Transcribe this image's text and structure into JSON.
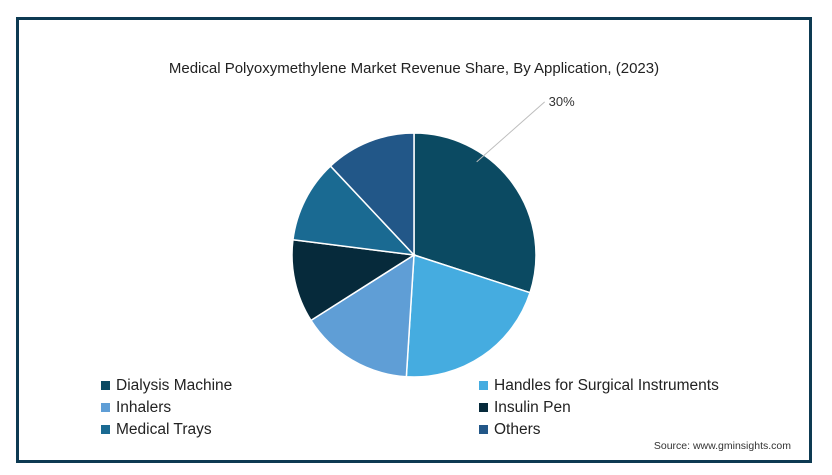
{
  "chart_data": {
    "type": "pie",
    "title": "Medical Polyoxymethylene Market Revenue Share, By Application, (2023)",
    "categories": [
      "Dialysis Machine",
      "Handles for Surgical Instruments",
      "Inhalers",
      "Insulin Pen",
      "Medical Trays",
      "Others"
    ],
    "values": [
      30,
      21,
      15,
      11,
      11,
      12
    ],
    "colors": [
      "#0b4a62",
      "#45ace0",
      "#5f9ed6",
      "#062a3b",
      "#1a6a92",
      "#225788"
    ],
    "data_labels": [
      {
        "category": "Dialysis Machine",
        "text": "30%"
      }
    ],
    "legend_placement": "bottom",
    "start_angle_deg": 0,
    "direction": "clockwise"
  },
  "source": "Source: www.gminsights.com"
}
